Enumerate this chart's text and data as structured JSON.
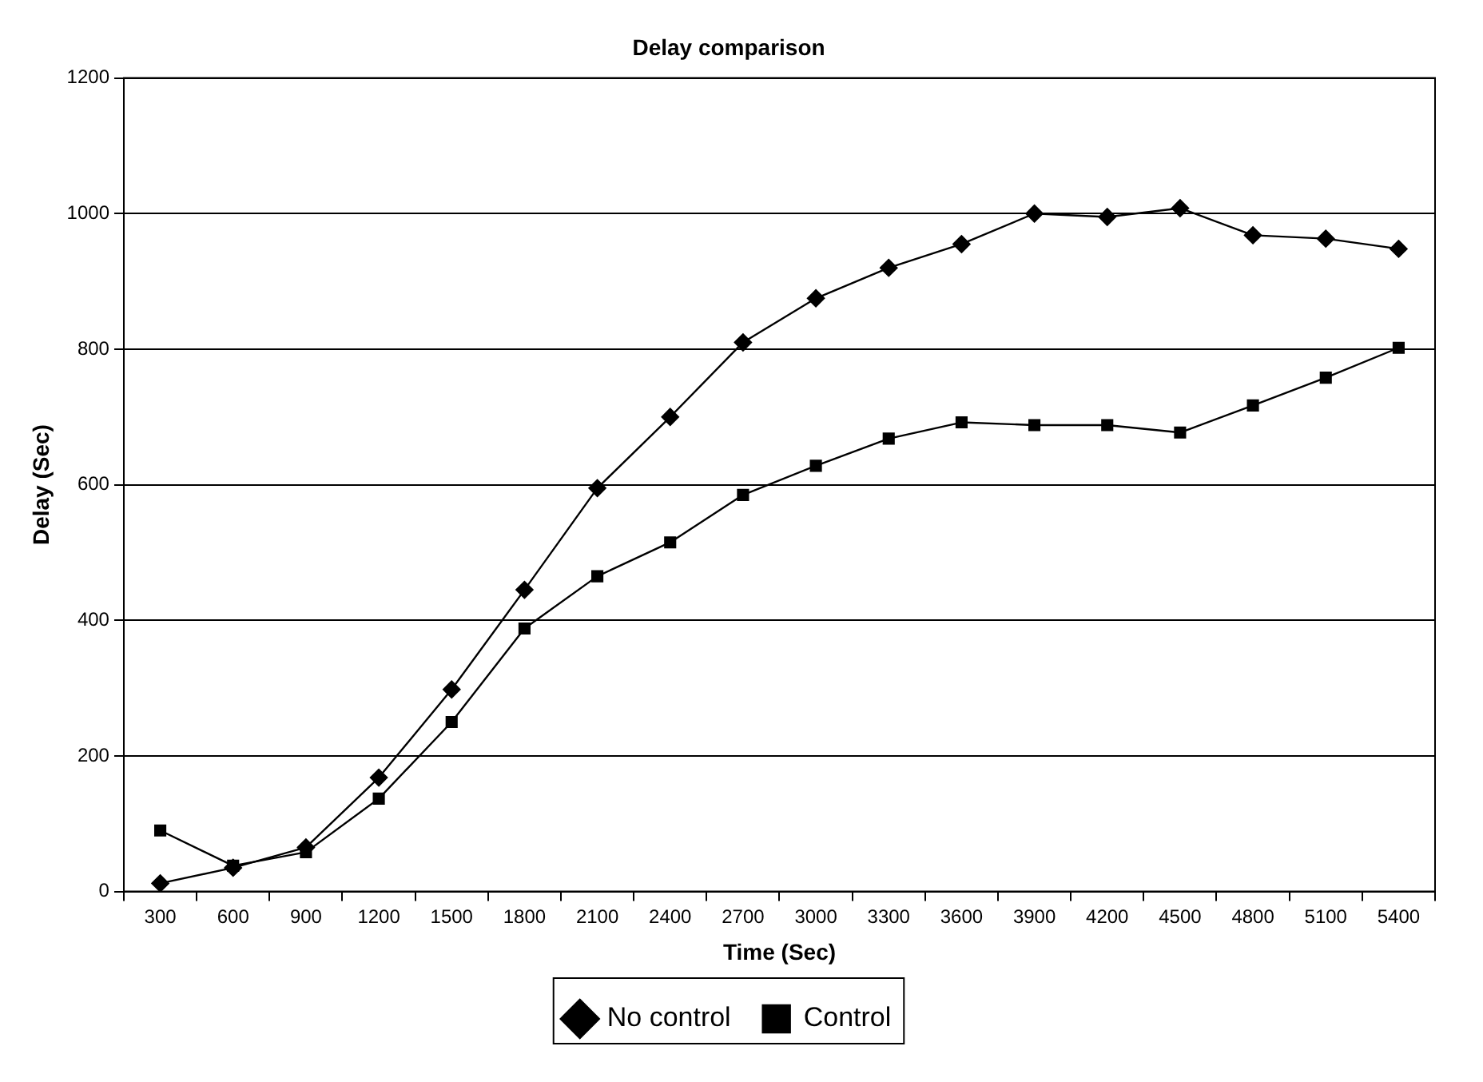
{
  "chart_data": {
    "type": "line",
    "title": "Delay comparison",
    "xlabel": "Time (Sec)",
    "ylabel": "Delay (Sec)",
    "categories": [
      "300",
      "600",
      "900",
      "1200",
      "1500",
      "1800",
      "2100",
      "2400",
      "2700",
      "3000",
      "3300",
      "3600",
      "3900",
      "4200",
      "4500",
      "4800",
      "5100",
      "5400"
    ],
    "series": [
      {
        "name": "No control",
        "color": "#000000",
        "marker": "diamond",
        "values": [
          12,
          35,
          65,
          168,
          298,
          445,
          595,
          700,
          810,
          875,
          920,
          955,
          1000,
          995,
          1008,
          968,
          963,
          948
        ]
      },
      {
        "name": "Control",
        "color": "#000000",
        "marker": "square",
        "values": [
          90,
          38,
          58,
          137,
          250,
          388,
          465,
          515,
          585,
          628,
          668,
          692,
          688,
          688,
          677,
          717,
          758,
          802
        ]
      }
    ],
    "ylim": [
      0,
      1200
    ],
    "yticks": [
      0,
      200,
      400,
      600,
      800,
      1000,
      1200
    ],
    "grid": "y",
    "legend": "bottom",
    "line_style": "solid"
  }
}
